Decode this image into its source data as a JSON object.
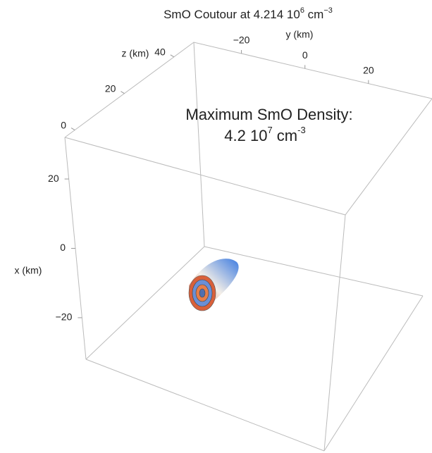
{
  "chart_data": {
    "type": "contour3d",
    "title": {
      "text": "SmO Coutour at 4.214 10",
      "exp": "6",
      "unit": " cm",
      "unit_exp": "−3"
    },
    "annotation": {
      "line1": "Maximum SmO Density:",
      "text": "4.2 10",
      "exp": "7",
      "unit": " cm",
      "unit_exp": "-3"
    },
    "x_label": "x (km)",
    "y_label": "y (km)",
    "z_label": "z (km)",
    "xlim": [
      32,
      -32
    ],
    "xticks": [
      20,
      0,
      {
        "value": -20,
        "label": "−20"
      }
    ],
    "ylim": [
      -35,
      40
    ],
    "yticks": [
      {
        "value": -20,
        "label": "−20"
      },
      0,
      20
    ],
    "zlim": [
      48,
      -4
    ],
    "zticks": [
      40,
      20,
      0
    ]
  }
}
